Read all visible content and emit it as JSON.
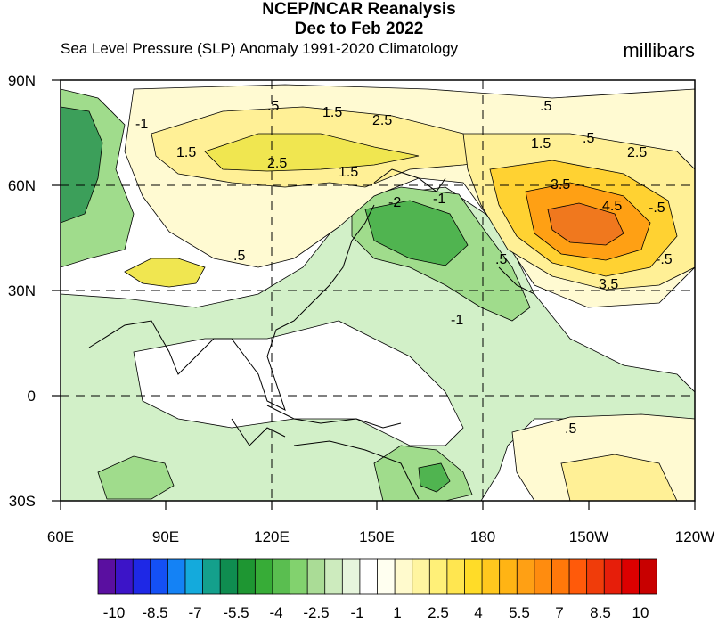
{
  "title": "NCEP/NCAR Reanalysis",
  "period": "Dec to Feb 2022",
  "subtitle": "Sea Level Pressure (SLP) Anomaly  1991-2020 Climatology",
  "units": "millibars",
  "lat_labels": [
    "90N",
    "60N",
    "30N",
    "0",
    "30S"
  ],
  "lon_labels": [
    "60E",
    "90E",
    "120E",
    "150E",
    "180",
    "150W",
    "120W"
  ],
  "contour_labels": [
    ".5",
    "1.5",
    "2.5",
    ".5",
    ".5",
    "-1",
    "1.5",
    "2.5",
    "1.5",
    "1.5",
    "-2",
    "-1",
    ".5",
    ".5",
    "2.5",
    "3.5",
    "4.5",
    "-.5",
    "3.5",
    "-.5",
    "-1",
    ".5"
  ],
  "colorbar_labels": [
    "-10",
    "-8.5",
    "-7",
    "-5.5",
    "-4",
    "-2.5",
    "-1",
    "1",
    "2.5",
    "4",
    "5.5",
    "7",
    "8.5",
    "10"
  ],
  "colorbar_colors": [
    "#5a0fa0",
    "#3c14c8",
    "#1e28e6",
    "#1450f5",
    "#1482f5",
    "#14aadc",
    "#14a08c",
    "#0f8c50",
    "#1e9632",
    "#37ac37",
    "#5abe50",
    "#82d26e",
    "#aadc96",
    "#cdebbe",
    "#e6f5dc",
    "#ffffff",
    "#fffff0",
    "#fffacd",
    "#fff5a0",
    "#fff078",
    "#ffe650",
    "#ffdc28",
    "#ffc81e",
    "#ffb414",
    "#ffa014",
    "#ff8c0f",
    "#ff780a",
    "#ff5a0a",
    "#f03c0a",
    "#e61e0a",
    "#dc0000",
    "#c80000"
  ],
  "legend_colors": {
    "neg_light": "#d2f0c8",
    "neg_mid": "#a0dc8c",
    "neg_strong": "#50b450",
    "pos_light": "#fffad2",
    "pos_mid": "#fff096",
    "pos_strong": "#f0e650",
    "pos_orange": "#ffb41e",
    "pos_red": "#f0781e"
  }
}
